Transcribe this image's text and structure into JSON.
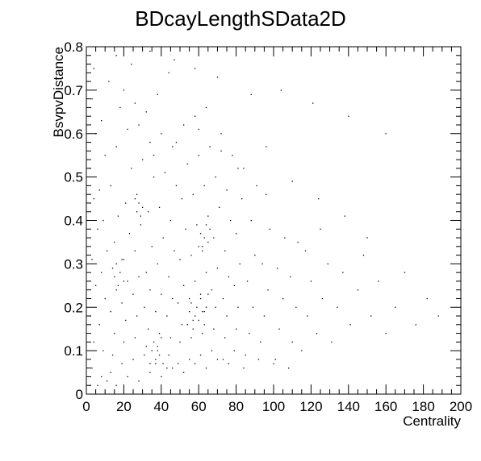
{
  "chart_data": {
    "type": "scatter",
    "title": "BDcayLengthSData2D",
    "xlabel": "Centrality",
    "ylabel": "BsvpvDistance",
    "xlim": [
      0,
      200
    ],
    "ylim": [
      0,
      0.8
    ],
    "x_ticks": [
      "0",
      "20",
      "40",
      "60",
      "80",
      "100",
      "120",
      "140",
      "160",
      "180",
      "200"
    ],
    "y_ticks": [
      "0",
      "0.1",
      "0.2",
      "0.3",
      "0.4",
      "0.5",
      "0.6",
      "0.7",
      "0.8"
    ],
    "grid": false,
    "legend": "none",
    "marker_color": "#000000",
    "points": [
      [
        2,
        0.02
      ],
      [
        3,
        0.06
      ],
      [
        4,
        0.12
      ],
      [
        2,
        0.18
      ],
      [
        5,
        0.25
      ],
      [
        3,
        0.31
      ],
      [
        6,
        0.38
      ],
      [
        4,
        0.45
      ],
      [
        2,
        0.52
      ],
      [
        5,
        0.6
      ],
      [
        3,
        0.68
      ],
      [
        4,
        0.75
      ],
      [
        8,
        0.04
      ],
      [
        9,
        0.1
      ],
      [
        7,
        0.16
      ],
      [
        10,
        0.22
      ],
      [
        8,
        0.28
      ],
      [
        11,
        0.33
      ],
      [
        9,
        0.4
      ],
      [
        7,
        0.47
      ],
      [
        10,
        0.55
      ],
      [
        8,
        0.63
      ],
      [
        12,
        0.72
      ],
      [
        13,
        0.05
      ],
      [
        14,
        0.09
      ],
      [
        15,
        0.14
      ],
      [
        13,
        0.19
      ],
      [
        16,
        0.24
      ],
      [
        14,
        0.29
      ],
      [
        15,
        0.35
      ],
      [
        17,
        0.41
      ],
      [
        13,
        0.48
      ],
      [
        16,
        0.57
      ],
      [
        18,
        0.66
      ],
      [
        19,
        0.07
      ],
      [
        20,
        0.12
      ],
      [
        21,
        0.17
      ],
      [
        19,
        0.21
      ],
      [
        22,
        0.26
      ],
      [
        20,
        0.31
      ],
      [
        23,
        0.37
      ],
      [
        21,
        0.44
      ],
      [
        24,
        0.52
      ],
      [
        22,
        0.61
      ],
      [
        20,
        0.7
      ],
      [
        25,
        0.08
      ],
      [
        26,
        0.13
      ],
      [
        27,
        0.18
      ],
      [
        25,
        0.23
      ],
      [
        28,
        0.27
      ],
      [
        26,
        0.33
      ],
      [
        29,
        0.39
      ],
      [
        27,
        0.46
      ],
      [
        30,
        0.54
      ],
      [
        28,
        0.62
      ],
      [
        26,
        0.67
      ],
      [
        31,
        0.09
      ],
      [
        32,
        0.11
      ],
      [
        33,
        0.15
      ],
      [
        31,
        0.2
      ],
      [
        34,
        0.24
      ],
      [
        32,
        0.28
      ],
      [
        35,
        0.34
      ],
      [
        33,
        0.42
      ],
      [
        36,
        0.5
      ],
      [
        34,
        0.58
      ],
      [
        32,
        0.65
      ],
      [
        37,
        0.07
      ],
      [
        38,
        0.1
      ],
      [
        39,
        0.14
      ],
      [
        37,
        0.19
      ],
      [
        40,
        0.23
      ],
      [
        38,
        0.3
      ],
      [
        41,
        0.36
      ],
      [
        39,
        0.43
      ],
      [
        42,
        0.51
      ],
      [
        40,
        0.6
      ],
      [
        38,
        0.69
      ],
      [
        43,
        0.06
      ],
      [
        44,
        0.09
      ],
      [
        45,
        0.13
      ],
      [
        43,
        0.18
      ],
      [
        46,
        0.22
      ],
      [
        44,
        0.27
      ],
      [
        47,
        0.33
      ],
      [
        45,
        0.4
      ],
      [
        48,
        0.48
      ],
      [
        46,
        0.57
      ],
      [
        44,
        0.74
      ],
      [
        49,
        0.07
      ],
      [
        50,
        0.12
      ],
      [
        51,
        0.16
      ],
      [
        49,
        0.21
      ],
      [
        52,
        0.25
      ],
      [
        50,
        0.31
      ],
      [
        53,
        0.38
      ],
      [
        51,
        0.45
      ],
      [
        54,
        0.53
      ],
      [
        52,
        0.62
      ],
      [
        55,
        0.08
      ],
      [
        56,
        0.13
      ],
      [
        57,
        0.17
      ],
      [
        55,
        0.22
      ],
      [
        58,
        0.26
      ],
      [
        56,
        0.32
      ],
      [
        59,
        0.39
      ],
      [
        57,
        0.46
      ],
      [
        60,
        0.55
      ],
      [
        58,
        0.64
      ],
      [
        61,
        0.09
      ],
      [
        62,
        0.14
      ],
      [
        63,
        0.19
      ],
      [
        61,
        0.23
      ],
      [
        64,
        0.28
      ],
      [
        62,
        0.34
      ],
      [
        65,
        0.41
      ],
      [
        63,
        0.48
      ],
      [
        66,
        0.57
      ],
      [
        64,
        0.66
      ],
      [
        67,
        0.1
      ],
      [
        68,
        0.15
      ],
      [
        69,
        0.2
      ],
      [
        67,
        0.24
      ],
      [
        70,
        0.29
      ],
      [
        68,
        0.36
      ],
      [
        71,
        0.43
      ],
      [
        69,
        0.5
      ],
      [
        72,
        0.6
      ],
      [
        73,
        0.08
      ],
      [
        74,
        0.13
      ],
      [
        75,
        0.18
      ],
      [
        73,
        0.22
      ],
      [
        76,
        0.27
      ],
      [
        74,
        0.33
      ],
      [
        77,
        0.4
      ],
      [
        75,
        0.47
      ],
      [
        78,
        0.55
      ],
      [
        79,
        0.1
      ],
      [
        80,
        0.15
      ],
      [
        81,
        0.2
      ],
      [
        79,
        0.25
      ],
      [
        82,
        0.3
      ],
      [
        80,
        0.37
      ],
      [
        83,
        0.45
      ],
      [
        81,
        0.52
      ],
      [
        85,
        0.09
      ],
      [
        87,
        0.14
      ],
      [
        89,
        0.2
      ],
      [
        86,
        0.26
      ],
      [
        90,
        0.32
      ],
      [
        88,
        0.4
      ],
      [
        91,
        0.48
      ],
      [
        93,
        0.12
      ],
      [
        95,
        0.18
      ],
      [
        97,
        0.24
      ],
      [
        94,
        0.3
      ],
      [
        98,
        0.38
      ],
      [
        96,
        0.46
      ],
      [
        101,
        0.08
      ],
      [
        103,
        0.15
      ],
      [
        105,
        0.22
      ],
      [
        102,
        0.29
      ],
      [
        106,
        0.36
      ],
      [
        108,
        0.06
      ],
      [
        110,
        0.12
      ],
      [
        112,
        0.2
      ],
      [
        109,
        0.27
      ],
      [
        113,
        0.35
      ],
      [
        115,
        0.1
      ],
      [
        118,
        0.18
      ],
      [
        120,
        0.26
      ],
      [
        117,
        0.33
      ],
      [
        123,
        0.14
      ],
      [
        126,
        0.22
      ],
      [
        129,
        0.3
      ],
      [
        125,
        0.38
      ],
      [
        131,
        0.12
      ],
      [
        134,
        0.2
      ],
      [
        137,
        0.28
      ],
      [
        141,
        0.16
      ],
      [
        145,
        0.24
      ],
      [
        148,
        0.32
      ],
      [
        152,
        0.18
      ],
      [
        156,
        0.26
      ],
      [
        160,
        0.14
      ],
      [
        165,
        0.2
      ],
      [
        170,
        0.28
      ],
      [
        176,
        0.16
      ],
      [
        182,
        0.22
      ],
      [
        188,
        0.18
      ],
      [
        6,
        0.02
      ],
      [
        11,
        0.03
      ],
      [
        16,
        0.02
      ],
      [
        22,
        0.04
      ],
      [
        28,
        0.03
      ],
      [
        34,
        0.05
      ],
      [
        40,
        0.04
      ],
      [
        46,
        0.06
      ],
      [
        52,
        0.05
      ],
      [
        58,
        0.07
      ],
      [
        64,
        0.06
      ],
      [
        70,
        0.08
      ],
      [
        76,
        0.07
      ],
      [
        84,
        0.06
      ],
      [
        92,
        0.08
      ],
      [
        100,
        0.07
      ],
      [
        16,
        0.78
      ],
      [
        24,
        0.76
      ],
      [
        34,
        0.79
      ],
      [
        47,
        0.77
      ],
      [
        58,
        0.75
      ],
      [
        70,
        0.73
      ],
      [
        88,
        0.69
      ],
      [
        104,
        0.7
      ],
      [
        121,
        0.67
      ],
      [
        140,
        0.64
      ],
      [
        160,
        0.6
      ],
      [
        36,
        0.55
      ],
      [
        48,
        0.58
      ],
      [
        60,
        0.61
      ],
      [
        72,
        0.56
      ],
      [
        84,
        0.52
      ],
      [
        96,
        0.57
      ],
      [
        110,
        0.49
      ],
      [
        124,
        0.45
      ],
      [
        138,
        0.41
      ],
      [
        150,
        0.36
      ],
      [
        54,
        0.16
      ],
      [
        55,
        0.19
      ],
      [
        56,
        0.21
      ],
      [
        57,
        0.15
      ],
      [
        58,
        0.18
      ],
      [
        59,
        0.2
      ],
      [
        60,
        0.17
      ],
      [
        61,
        0.22
      ],
      [
        62,
        0.19
      ],
      [
        63,
        0.16
      ],
      [
        64,
        0.2
      ],
      [
        65,
        0.23
      ],
      [
        34,
        0.07
      ],
      [
        35,
        0.1
      ],
      [
        36,
        0.12
      ],
      [
        37,
        0.08
      ],
      [
        38,
        0.11
      ],
      [
        39,
        0.09
      ],
      [
        40,
        0.13
      ],
      [
        41,
        0.07
      ],
      [
        60,
        0.34
      ],
      [
        61,
        0.37
      ],
      [
        62,
        0.33
      ],
      [
        63,
        0.36
      ],
      [
        64,
        0.39
      ],
      [
        65,
        0.35
      ],
      [
        66,
        0.38
      ],
      [
        26,
        0.45
      ],
      [
        27,
        0.42
      ],
      [
        28,
        0.44
      ],
      [
        29,
        0.41
      ],
      [
        30,
        0.43
      ],
      [
        15,
        0.27
      ],
      [
        16,
        0.3
      ],
      [
        17,
        0.25
      ],
      [
        18,
        0.28
      ],
      [
        19,
        0.31
      ],
      [
        20,
        0.26
      ]
    ]
  }
}
